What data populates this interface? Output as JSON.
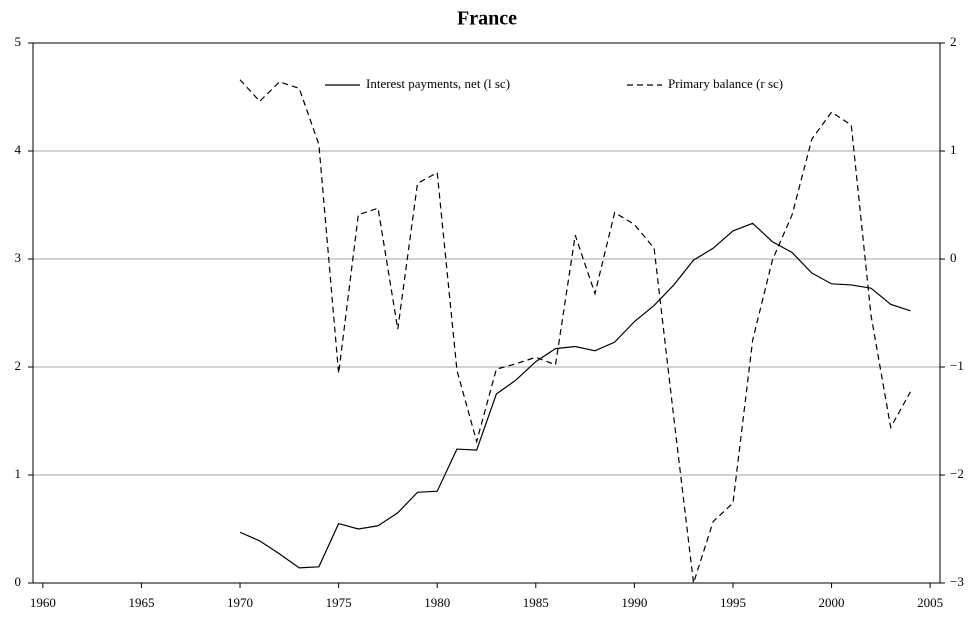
{
  "chart_data": {
    "type": "line",
    "title": "France",
    "x": [
      1970,
      1971,
      1972,
      1973,
      1974,
      1975,
      1976,
      1977,
      1978,
      1979,
      1980,
      1981,
      1982,
      1983,
      1984,
      1985,
      1986,
      1987,
      1988,
      1989,
      1990,
      1991,
      1992,
      1993,
      1994,
      1995,
      1996,
      1997,
      1998,
      1999,
      2000,
      2001,
      2002,
      2003,
      2004
    ],
    "series": [
      {
        "name": "Interest payments, net (l sc)",
        "color": "#000000",
        "linestyle": "solid",
        "values": [
          0.47,
          0.39,
          0.27,
          0.14,
          0.15,
          0.55,
          0.5,
          0.53,
          0.65,
          0.84,
          0.85,
          1.24,
          1.23,
          1.75,
          1.88,
          2.05,
          2.17,
          2.19,
          2.15,
          2.23,
          2.42,
          2.57,
          2.76,
          2.99,
          3.1,
          3.26,
          3.33,
          3.16,
          3.06,
          2.87,
          2.77,
          2.76,
          2.73,
          2.58,
          2.52
        ]
      },
      {
        "name": "Primary balance (r sc)",
        "color": "#000000",
        "linestyle": "dashed",
        "axis": "y2",
        "values": [
          1.66,
          1.46,
          1.64,
          1.58,
          1.06,
          -1.06,
          0.41,
          0.47,
          -0.65,
          0.7,
          0.8,
          -1.03,
          -1.69,
          -1.02,
          -0.97,
          -0.91,
          -0.98,
          0.22,
          -0.32,
          0.43,
          0.32,
          0.1,
          -1.47,
          -3.0,
          -2.43,
          -2.26,
          -0.75,
          -0.01,
          0.41,
          1.11,
          1.36,
          1.24,
          -0.52,
          -1.56,
          -1.23
        ]
      }
    ],
    "xlim": [
      1959.5,
      2005.5
    ],
    "xticks": [
      1960,
      1965,
      1970,
      1975,
      1980,
      1985,
      1990,
      1995,
      2000,
      2005
    ],
    "ylim": [
      0,
      5
    ],
    "yticks": [
      0,
      1,
      2,
      3,
      4,
      5
    ],
    "y2lim": [
      -3,
      2
    ],
    "y2ticks": [
      {
        "value": -3,
        "label": "−3"
      },
      {
        "value": -2,
        "label": "−2"
      },
      {
        "value": -1,
        "label": "−1"
      },
      0,
      1,
      2
    ],
    "grid": true,
    "legend": "top"
  }
}
